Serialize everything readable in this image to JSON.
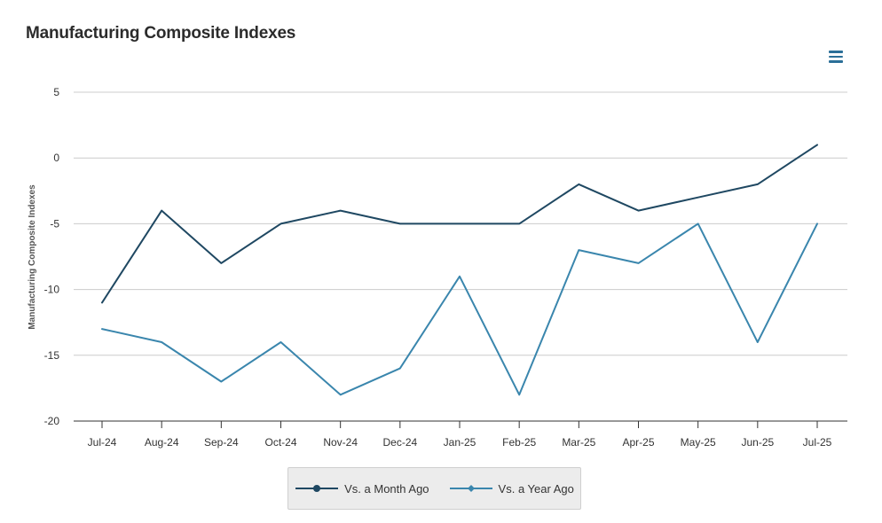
{
  "chart_data": {
    "type": "line",
    "title": "Manufacturing Composite Indexes",
    "ylabel": "Manufacturing Composite Indexes",
    "xlabel": "",
    "categories": [
      "Jul-24",
      "Aug-24",
      "Sep-24",
      "Oct-24",
      "Nov-24",
      "Dec-24",
      "Jan-25",
      "Feb-25",
      "Mar-25",
      "Apr-25",
      "May-25",
      "Jun-25",
      "Jul-25"
    ],
    "ylim": [
      -20,
      5
    ],
    "yticks": [
      5,
      0,
      -5,
      -10,
      -15,
      -20
    ],
    "grid": true,
    "legend_position": "bottom",
    "series": [
      {
        "name": "Vs. a Month Ago",
        "color": "#1f4862",
        "marker": "circle",
        "values": [
          -11,
          -4,
          -8,
          -5,
          -4,
          -5,
          -5,
          -5,
          -2,
          -4,
          -3,
          -2,
          1
        ]
      },
      {
        "name": "Vs. a Year Ago",
        "color": "#3a86ad",
        "marker": "diamond",
        "values": [
          -13,
          -14,
          -17,
          -14,
          -18,
          -16,
          -9,
          -18,
          -7,
          -8,
          -5,
          -14,
          -5
        ]
      }
    ]
  },
  "menu": {
    "icon": "hamburger-menu-icon",
    "color": "#2b6f98"
  }
}
